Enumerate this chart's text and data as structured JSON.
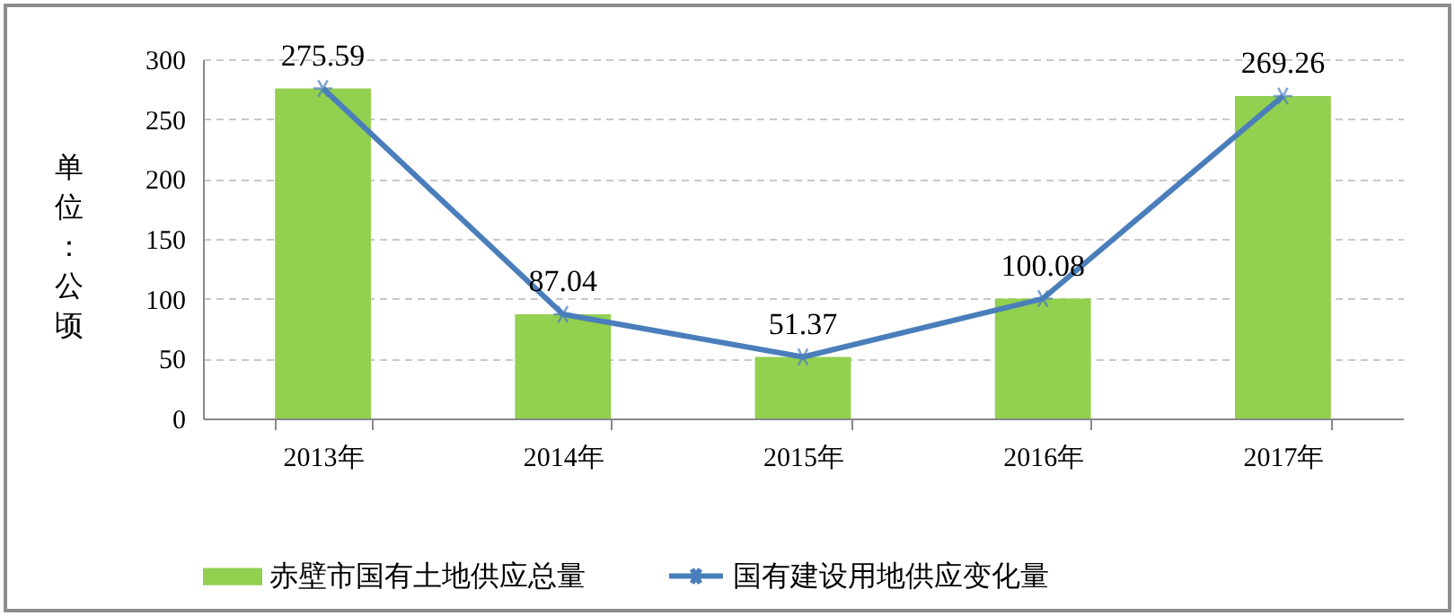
{
  "chart_data": {
    "type": "bar",
    "ylabel": "单位：公顷",
    "categories": [
      "2013年",
      "2014年",
      "2015年",
      "2016年",
      "2017年"
    ],
    "series": [
      {
        "name": "赤壁市国有土地供应总量",
        "color": "#92d050",
        "values": [
          275.59,
          87.04,
          51.37,
          100.08,
          269.26
        ]
      },
      {
        "name": "国有建设用地供应变化量",
        "type": "line",
        "color": "#4a7ebb",
        "marker": "cross",
        "line_style": "solid",
        "values": [
          275.59,
          87.04,
          51.37,
          100.08,
          269.26
        ],
        "value_labels": [
          "275.59",
          "87.04",
          "51.37",
          "100.08",
          "269.26"
        ]
      }
    ],
    "ylim": [
      0,
      300
    ],
    "yticks": [
      0,
      50,
      100,
      150,
      200,
      250,
      300
    ],
    "grid": "y",
    "legend": "bottom"
  }
}
